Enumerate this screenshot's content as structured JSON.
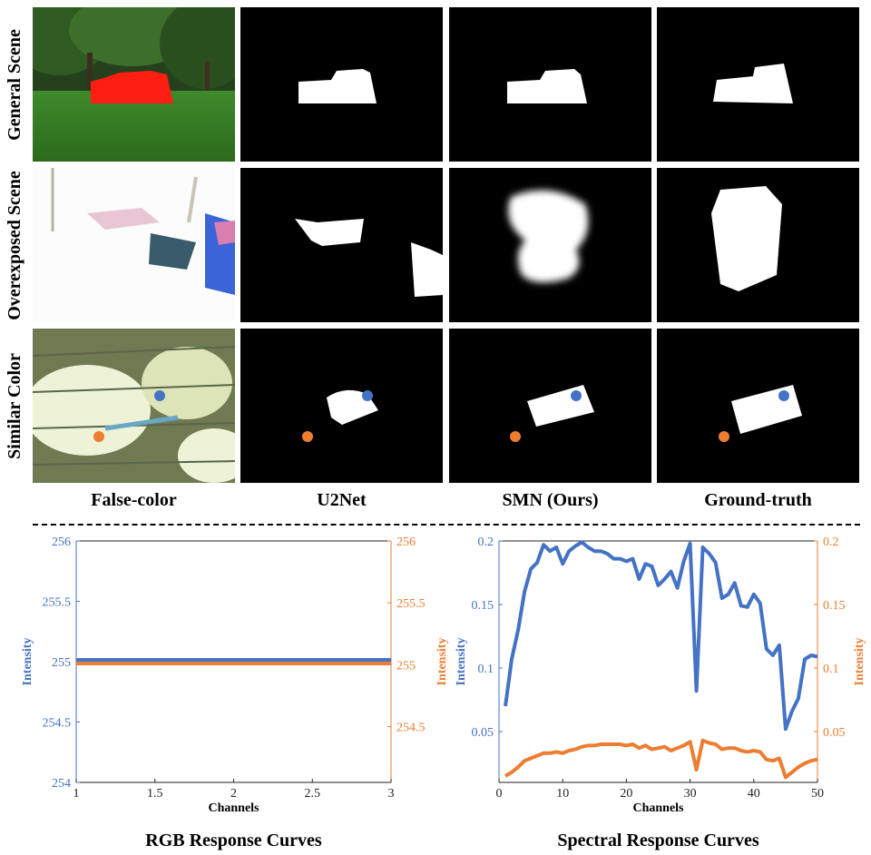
{
  "rows": [
    {
      "label": "General Scene"
    },
    {
      "label": "Overexposed Scene"
    },
    {
      "label": "Similar Color"
    }
  ],
  "columns": [
    {
      "label": "False-color"
    },
    {
      "label": "U2Net"
    },
    {
      "label": "SMN (Ours)"
    },
    {
      "label": "Ground-truth"
    }
  ],
  "colors": {
    "blue": "#4472c4",
    "orange": "#ed7d31"
  },
  "chart_data": [
    {
      "type": "line",
      "title": "RGB Response Curves",
      "xlabel": "Channels",
      "ylabel_left": "Intensity",
      "ylabel_right": "Intensity",
      "xlim": [
        1,
        3
      ],
      "ylim": [
        254,
        256
      ],
      "xticks": [
        "1",
        "1.5",
        "2",
        "2.5",
        "3"
      ],
      "yticks_left": [
        "254",
        "254.5",
        "255",
        "255.5",
        "256"
      ],
      "yticks_right": [
        "254.5",
        "255",
        "255.5",
        "256"
      ],
      "series": [
        {
          "color": "#4472c4",
          "x": [
            1,
            3
          ],
          "values": [
            255,
            255
          ]
        },
        {
          "color": "#ed7d31",
          "x": [
            1,
            3
          ],
          "values": [
            255,
            255
          ]
        }
      ]
    },
    {
      "type": "line",
      "title": "Spectral Response Curves",
      "xlabel": "Channels",
      "ylabel_left": "Intensity",
      "ylabel_right": "Intensity",
      "xlim": [
        0,
        50
      ],
      "ylim": [
        0.01,
        0.2
      ],
      "xticks": [
        "0",
        "10",
        "20",
        "30",
        "40",
        "50"
      ],
      "yticks_left": [
        "0.05",
        "0.1",
        "0.15",
        "0.2"
      ],
      "yticks_right": [
        "0.05",
        "0.1",
        "0.15",
        "0.2"
      ],
      "series": [
        {
          "color": "#4472c4",
          "x": [
            1,
            2,
            3,
            4,
            5,
            6,
            7,
            8,
            9,
            10,
            11,
            12,
            13,
            14,
            15,
            16,
            17,
            18,
            19,
            20,
            21,
            22,
            23,
            24,
            25,
            26,
            27,
            28,
            29,
            30,
            31,
            32,
            33,
            34,
            35,
            36,
            37,
            38,
            39,
            40,
            41,
            42,
            43,
            44,
            45,
            46,
            47,
            48,
            49,
            50
          ],
          "values": [
            0.07,
            0.107,
            0.13,
            0.16,
            0.178,
            0.183,
            0.197,
            0.192,
            0.195,
            0.182,
            0.192,
            0.196,
            0.199,
            0.195,
            0.192,
            0.192,
            0.19,
            0.186,
            0.186,
            0.184,
            0.186,
            0.17,
            0.182,
            0.18,
            0.165,
            0.17,
            0.176,
            0.163,
            0.184,
            0.198,
            0.082,
            0.195,
            0.19,
            0.183,
            0.155,
            0.158,
            0.167,
            0.149,
            0.148,
            0.158,
            0.151,
            0.115,
            0.11,
            0.118,
            0.052,
            0.066,
            0.076,
            0.107,
            0.11,
            0.109
          ]
        },
        {
          "color": "#ed7d31",
          "x": [
            1,
            2,
            3,
            4,
            5,
            6,
            7,
            8,
            9,
            10,
            11,
            12,
            13,
            14,
            15,
            16,
            17,
            18,
            19,
            20,
            21,
            22,
            23,
            24,
            25,
            26,
            27,
            28,
            29,
            30,
            31,
            32,
            33,
            34,
            35,
            36,
            37,
            38,
            39,
            40,
            41,
            42,
            43,
            44,
            45,
            46,
            47,
            48,
            49,
            50
          ],
          "values": [
            0.015,
            0.018,
            0.022,
            0.027,
            0.029,
            0.031,
            0.033,
            0.033,
            0.034,
            0.033,
            0.035,
            0.036,
            0.038,
            0.039,
            0.039,
            0.04,
            0.04,
            0.04,
            0.04,
            0.039,
            0.04,
            0.037,
            0.039,
            0.036,
            0.037,
            0.038,
            0.035,
            0.037,
            0.039,
            0.042,
            0.02,
            0.043,
            0.041,
            0.04,
            0.036,
            0.037,
            0.037,
            0.035,
            0.034,
            0.035,
            0.034,
            0.028,
            0.027,
            0.029,
            0.014,
            0.018,
            0.022,
            0.025,
            0.027,
            0.028
          ]
        }
      ]
    }
  ]
}
